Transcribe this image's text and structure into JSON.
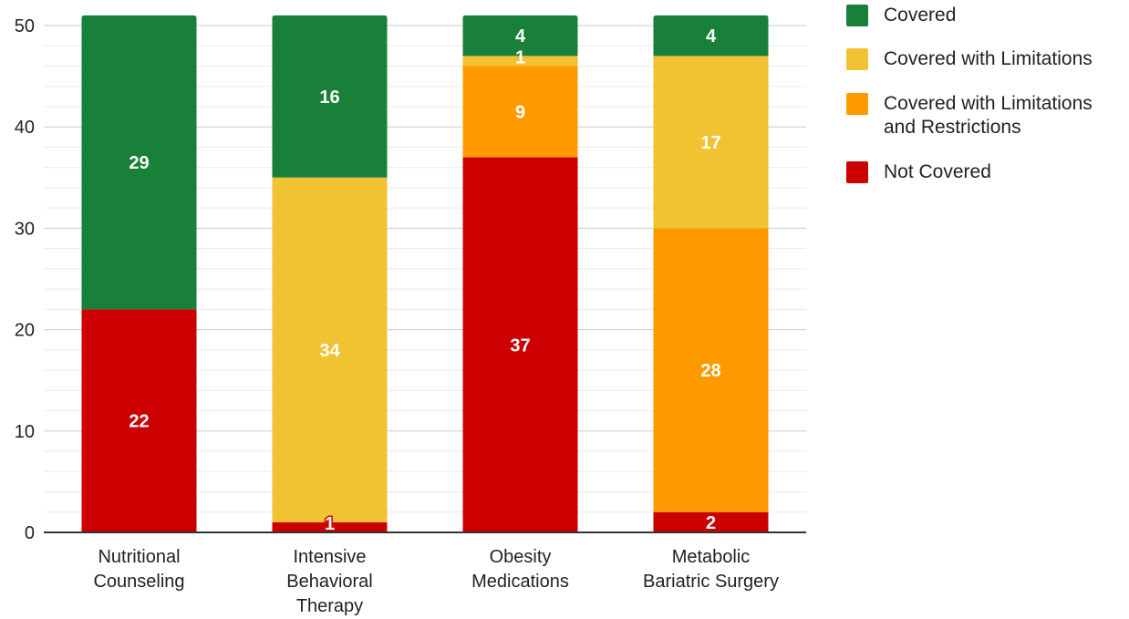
{
  "chart_data": {
    "type": "bar",
    "stacked": true,
    "categories": [
      [
        "Nutritional",
        "Counseling"
      ],
      [
        "Intensive",
        "Behavioral",
        "Therapy"
      ],
      [
        "Obesity",
        "Medications"
      ],
      [
        "Metabolic",
        "Bariatric Surgery"
      ]
    ],
    "series": [
      {
        "name": "Not Covered",
        "color": "#cc0000",
        "values": [
          22,
          1,
          37,
          2
        ]
      },
      {
        "name": "Covered with Limitations and Restrictions",
        "color": "#ff9900",
        "values": [
          0,
          0,
          9,
          28
        ]
      },
      {
        "name": "Covered with Limitations",
        "color": "#f1c232",
        "values": [
          0,
          34,
          1,
          17
        ]
      },
      {
        "name": "Covered",
        "color": "#188038",
        "values": [
          29,
          16,
          4,
          4
        ]
      }
    ],
    "legend_order": [
      "Covered",
      "Covered with Limitations",
      "Covered with Limitations and Restrictions",
      "Not Covered"
    ],
    "y_ticks": [
      0,
      10,
      20,
      30,
      40,
      50
    ],
    "ylim": [
      0,
      50
    ],
    "grid": true,
    "minor_grid": true,
    "legend_position": "right",
    "title": "",
    "xlabel": "",
    "ylabel": ""
  },
  "legend": {
    "items": [
      {
        "label": "Covered",
        "color": "#188038"
      },
      {
        "label": "Covered with Limitations",
        "color": "#f1c232"
      },
      {
        "label": "Covered with Limitations\nand Restrictions",
        "color": "#ff9900"
      },
      {
        "label": "Not Covered",
        "color": "#cc0000"
      }
    ]
  }
}
